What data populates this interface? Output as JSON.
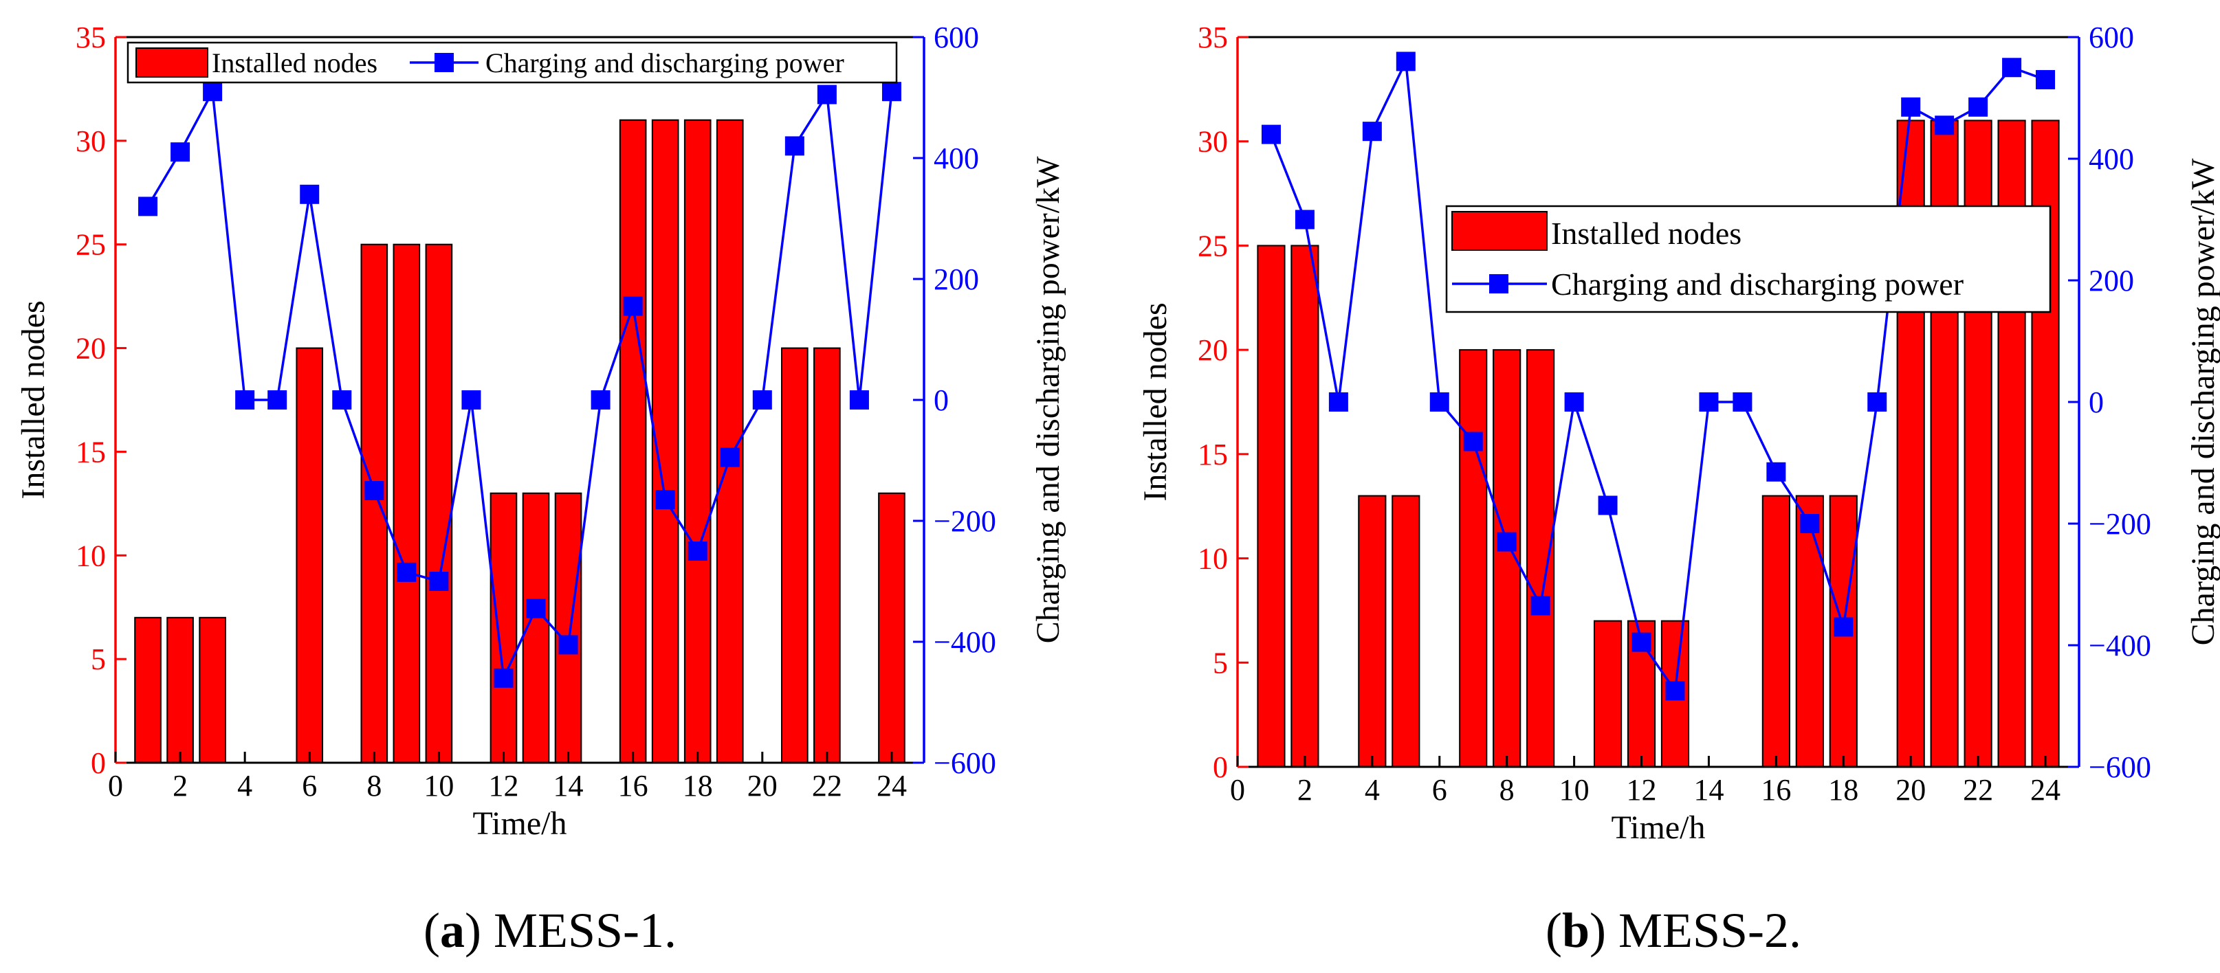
{
  "colors": {
    "bar": "#ff0000",
    "line": "#0000ff",
    "left_axis": "#ff0000",
    "right_axis": "#0000ff",
    "frame": "#000000"
  },
  "chart_data": [
    {
      "type": "bar+line",
      "caption_letter": "a",
      "caption_text": " MESS-1.",
      "xlabel": "Time/h",
      "ylabel_left": "Installed nodes",
      "ylabel_right": "Charging and discharging power/kW",
      "xlim": [
        0,
        25
      ],
      "xticks": [
        0,
        2,
        4,
        6,
        8,
        10,
        12,
        14,
        16,
        18,
        20,
        22,
        24
      ],
      "ylim_left": [
        0,
        35
      ],
      "yticks_left": [
        0,
        5,
        10,
        15,
        20,
        25,
        30,
        35
      ],
      "ylim_right": [
        -600,
        600
      ],
      "yticks_right": [
        -600,
        -400,
        -200,
        0,
        200,
        400,
        600
      ],
      "legend_position": "top",
      "legend_layout": "horizontal",
      "series": [
        {
          "name": "Installed nodes",
          "kind": "bar",
          "axis": "left",
          "x": [
            1,
            2,
            3,
            4,
            5,
            6,
            7,
            8,
            9,
            10,
            11,
            12,
            13,
            14,
            15,
            16,
            17,
            18,
            19,
            20,
            21,
            22,
            23,
            24
          ],
          "values": [
            7,
            7,
            7,
            0,
            0,
            20,
            0,
            25,
            25,
            25,
            0,
            13,
            13,
            13,
            0,
            31,
            31,
            31,
            31,
            0,
            20,
            20,
            0,
            13
          ]
        },
        {
          "name": "Charging and discharging power",
          "kind": "line",
          "axis": "right",
          "x": [
            1,
            2,
            3,
            4,
            5,
            6,
            7,
            8,
            9,
            10,
            11,
            12,
            13,
            14,
            15,
            16,
            17,
            18,
            19,
            20,
            21,
            22,
            23,
            24
          ],
          "values": [
            320,
            410,
            510,
            0,
            0,
            340,
            0,
            -150,
            -285,
            -300,
            0,
            -460,
            -345,
            -405,
            0,
            155,
            -165,
            -250,
            -95,
            0,
            420,
            505,
            0,
            510
          ]
        }
      ]
    },
    {
      "type": "bar+line",
      "caption_letter": "b",
      "caption_text": " MESS-2.",
      "xlabel": "Time/h",
      "ylabel_left": "Installed nodes",
      "ylabel_right": "Charging and discharging power/kW",
      "xlim": [
        0,
        25
      ],
      "xticks": [
        0,
        2,
        4,
        6,
        8,
        10,
        12,
        14,
        16,
        18,
        20,
        22,
        24
      ],
      "ylim_left": [
        0,
        35
      ],
      "yticks_left": [
        0,
        5,
        10,
        15,
        20,
        25,
        30,
        35
      ],
      "ylim_right": [
        -600,
        600
      ],
      "yticks_right": [
        -600,
        -400,
        -200,
        0,
        200,
        400,
        600
      ],
      "legend_position": "middle-right",
      "legend_layout": "vertical",
      "series": [
        {
          "name": "Installed nodes",
          "kind": "bar",
          "axis": "left",
          "x": [
            1,
            2,
            3,
            4,
            5,
            6,
            7,
            8,
            9,
            10,
            11,
            12,
            13,
            14,
            15,
            16,
            17,
            18,
            19,
            20,
            21,
            22,
            23,
            24
          ],
          "values": [
            25,
            25,
            0,
            13,
            13,
            0,
            20,
            20,
            20,
            0,
            7,
            7,
            7,
            0,
            0,
            13,
            13,
            13,
            0,
            31,
            31,
            31,
            31,
            31
          ]
        },
        {
          "name": "Charging and discharging power",
          "kind": "line",
          "axis": "right",
          "x": [
            1,
            2,
            3,
            4,
            5,
            6,
            7,
            8,
            9,
            10,
            11,
            12,
            13,
            14,
            15,
            16,
            17,
            18,
            19,
            20,
            21,
            22,
            23,
            24
          ],
          "values": [
            440,
            300,
            0,
            445,
            560,
            0,
            -65,
            -230,
            -335,
            0,
            -170,
            -395,
            -475,
            0,
            0,
            -115,
            -200,
            -370,
            0,
            485,
            455,
            485,
            550,
            530
          ]
        }
      ]
    }
  ]
}
